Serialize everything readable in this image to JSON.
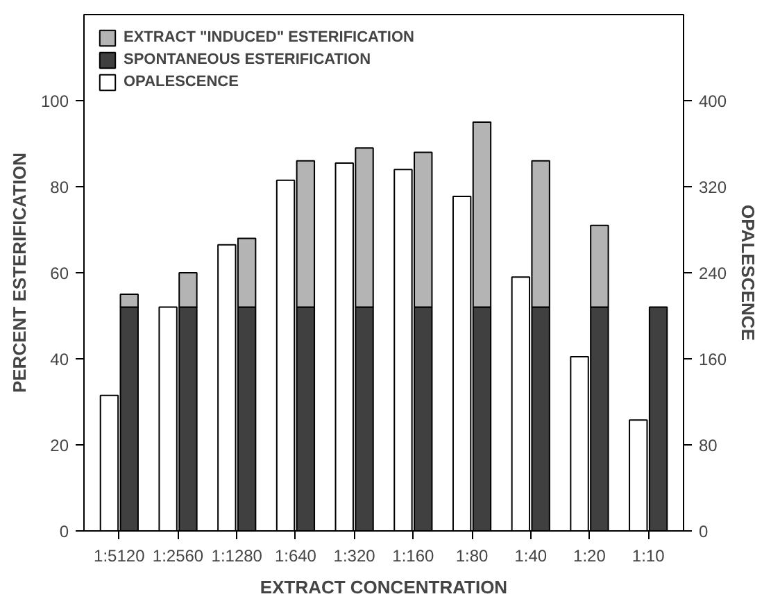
{
  "chart_data": {
    "type": "bar",
    "xlabel": "EXTRACT CONCENTRATION",
    "ylabel": "PERCENT ESTERIFICATION",
    "y2label": "OPALESCENCE",
    "categories": [
      "1:5120",
      "1:2560",
      "1:1280",
      "1:640",
      "1:320",
      "1:160",
      "1:80",
      "1:40",
      "1:20",
      "1:10"
    ],
    "series": [
      {
        "name": "OPALESCENCE",
        "color": "#ffffff",
        "axis": "y2",
        "values": [
          126,
          208,
          266,
          326,
          342,
          336,
          311,
          236,
          162,
          103
        ]
      },
      {
        "name": "SPONTANEOUS ESTERIFICATION",
        "color": "#404040",
        "values": [
          52,
          52,
          52,
          52,
          52,
          52,
          52,
          52,
          52,
          52
        ]
      },
      {
        "name": "EXTRACT \"INDUCED\" ESTERIFICATION",
        "color": "#b4b4b4",
        "values": [
          3,
          8,
          16,
          34,
          37,
          36,
          43,
          34,
          19,
          null
        ]
      }
    ],
    "stacked": true,
    "ylim": [
      0,
      120
    ],
    "yticks": [
      0,
      20,
      40,
      60,
      80,
      100
    ],
    "y2lim": [
      0,
      480
    ],
    "y2ticks": [
      0,
      80,
      160,
      240,
      320,
      400
    ],
    "grid": false,
    "legend": "top left"
  }
}
